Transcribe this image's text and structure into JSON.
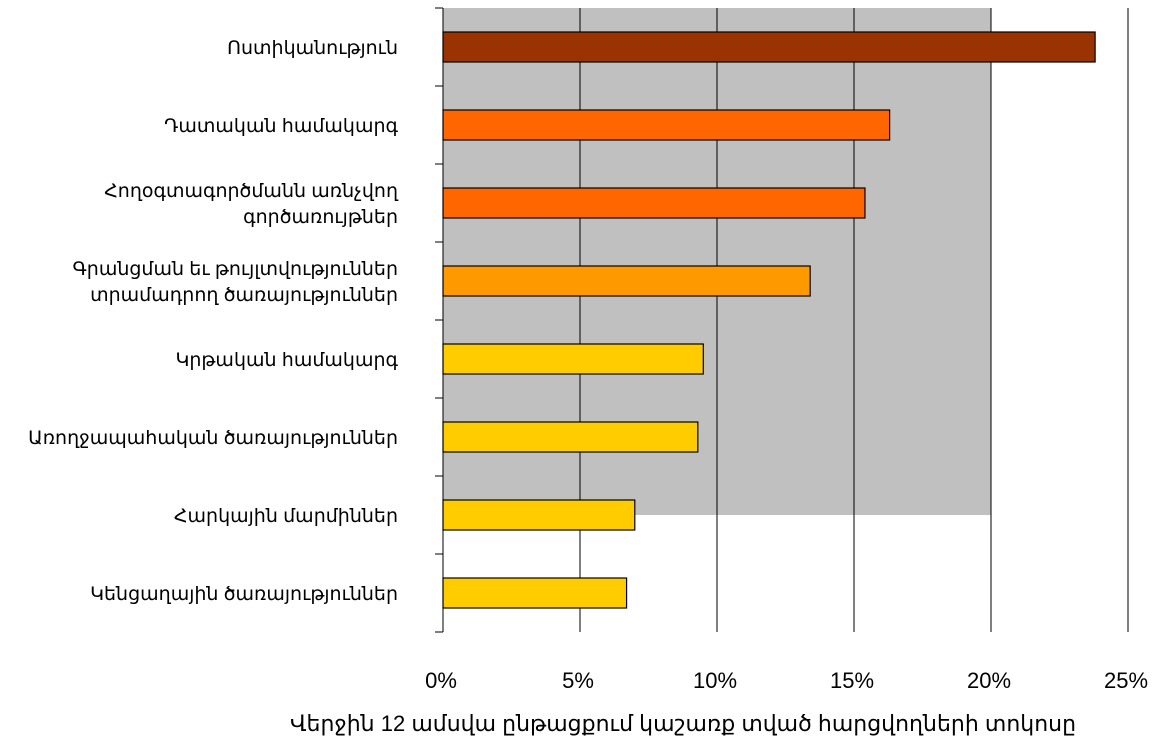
{
  "chart_data": {
    "type": "bar",
    "orientation": "horizontal",
    "title": "",
    "xlabel": "Վերջին 12 ամսվա ընթացքում կաշառք տված հարցվողների տոկոսը",
    "ylabel": "",
    "xlim": [
      0,
      25
    ],
    "x_ticks": [
      0,
      5,
      10,
      15,
      20,
      25
    ],
    "x_tick_labels": [
      "0%",
      "5%",
      "10%",
      "15%",
      "20%",
      "25%"
    ],
    "grid": "vertical",
    "legend": "none",
    "shaded_region": {
      "x_from": 0,
      "x_to": 20,
      "color": "#c0c0c0"
    },
    "categories": [
      [
        "Ոստիկանություն"
      ],
      [
        "Դատական համակարգ"
      ],
      [
        "Հողօգտագործմանն առնչվող",
        "գործառույթներ"
      ],
      [
        "Գրանցման եւ թույլտվություններ",
        "տրամադրող ծառայություններ"
      ],
      [
        "Կրթական համակարգ"
      ],
      [
        "Առողջապահական ծառայություններ"
      ],
      [
        "Հարկային մարմիններ"
      ],
      [
        "Կենցաղային ծառայություններ"
      ]
    ],
    "values": [
      23.8,
      16.3,
      15.4,
      13.4,
      9.5,
      9.3,
      7.0,
      6.7
    ],
    "colors": [
      "#993300",
      "#ff6600",
      "#ff6600",
      "#ff9900",
      "#ffcc00",
      "#ffcc00",
      "#ffcc00",
      "#ffcc00"
    ]
  }
}
